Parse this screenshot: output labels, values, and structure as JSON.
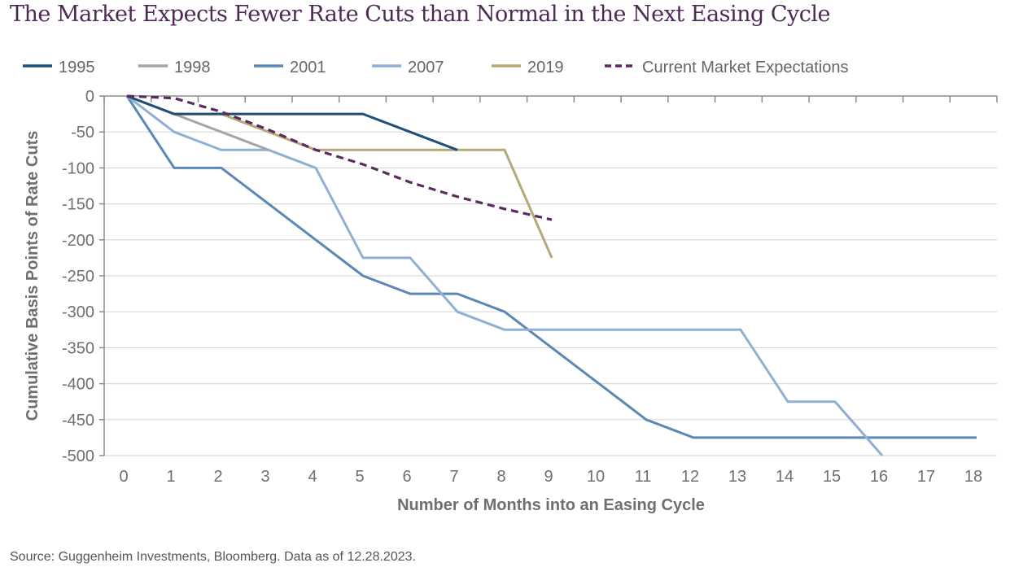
{
  "title": "The Market Expects Fewer Rate Cuts than Normal in the Next Easing Cycle",
  "source": "Source: Guggenheim Investments, Bloomberg. Data as of 12.28.2023.",
  "chart_data": {
    "type": "line",
    "xlabel": "Number of Months into an Easing Cycle",
    "ylabel": "Cumulative Basis Points of Rate Cuts",
    "xlim": [
      0,
      18
    ],
    "ylim": [
      -500,
      0
    ],
    "xticks": [
      0,
      1,
      2,
      3,
      4,
      5,
      6,
      7,
      8,
      9,
      10,
      11,
      12,
      13,
      14,
      15,
      16,
      17,
      18
    ],
    "yticks": [
      0,
      -50,
      -100,
      -150,
      -200,
      -250,
      -300,
      -350,
      -400,
      -450,
      -500
    ],
    "grid": "horizontal",
    "legend_position": "top",
    "series": [
      {
        "name": "1995",
        "color": "#1f4e79",
        "dash": "solid",
        "x": [
          0,
          1,
          2,
          3,
          4,
          5,
          6,
          7
        ],
        "y": [
          0,
          -25,
          -25,
          -25,
          -25,
          -25,
          -50,
          -75
        ]
      },
      {
        "name": "1998",
        "color": "#a6a6a6",
        "dash": "solid",
        "x": [
          0,
          1,
          2,
          3
        ],
        "y": [
          0,
          -25,
          -50,
          -75
        ]
      },
      {
        "name": "2001",
        "color": "#5b87b5",
        "dash": "solid",
        "x": [
          0,
          1,
          2,
          3,
          4,
          5,
          6,
          7,
          8,
          9,
          10,
          11,
          12,
          13,
          14,
          15,
          16,
          17,
          18
        ],
        "y": [
          0,
          -100,
          -100,
          -150,
          -200,
          -250,
          -275,
          -275,
          -300,
          -350,
          -400,
          -450,
          -475,
          -475,
          -475,
          -475,
          -475,
          -475,
          -475
        ]
      },
      {
        "name": "2007",
        "color": "#8fb0d4",
        "dash": "solid",
        "x": [
          0,
          1,
          2,
          3,
          4,
          5,
          6,
          7,
          8,
          9,
          10,
          11,
          12,
          13,
          14,
          15,
          16
        ],
        "y": [
          0,
          -50,
          -75,
          -75,
          -100,
          -225,
          -225,
          -300,
          -325,
          -325,
          -325,
          -325,
          -325,
          -325,
          -425,
          -425,
          -500
        ]
      },
      {
        "name": "2019",
        "color": "#b5a97a",
        "dash": "solid",
        "x": [
          0,
          1,
          2,
          3,
          4,
          5,
          6,
          7,
          8,
          9
        ],
        "y": [
          0,
          -25,
          -25,
          -50,
          -75,
          -75,
          -75,
          -75,
          -75,
          -225
        ]
      },
      {
        "name": "Current Market Expectations",
        "color": "#5b2a5e",
        "dash": "dashed",
        "x": [
          0,
          1,
          2,
          3,
          4,
          5,
          6,
          7,
          8,
          9
        ],
        "y": [
          0,
          -3,
          -22,
          -47,
          -75,
          -95,
          -120,
          -140,
          -157,
          -172
        ]
      }
    ]
  }
}
